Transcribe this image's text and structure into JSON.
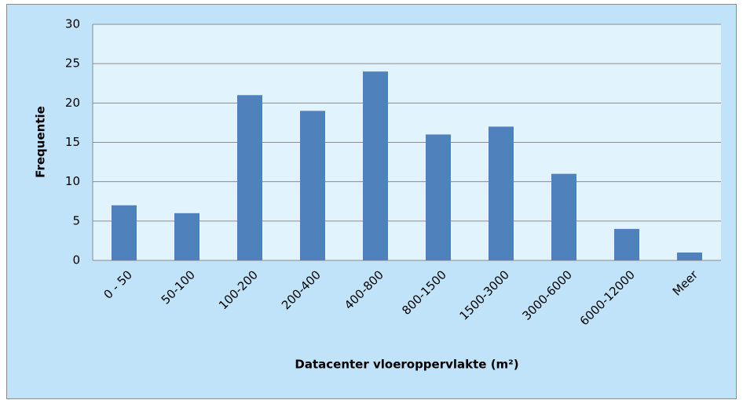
{
  "chart_data": {
    "type": "bar",
    "x_label": "Datacenter vloeroppervlakte (m²)",
    "y_label": "Frequentie",
    "categories": [
      "0 - 50",
      "50-100",
      "100-200",
      "200-400",
      "400-800",
      "800-1500",
      "1500-3000",
      "3000-6000",
      "6000-12000",
      "Meer"
    ],
    "values": [
      7,
      6,
      21,
      19,
      24,
      16,
      17,
      11,
      4,
      1
    ],
    "color": "#4f81bd",
    "ylim": [
      0,
      30
    ],
    "yticks": [
      0,
      5,
      10,
      15,
      20,
      25,
      30
    ],
    "grid": true
  }
}
